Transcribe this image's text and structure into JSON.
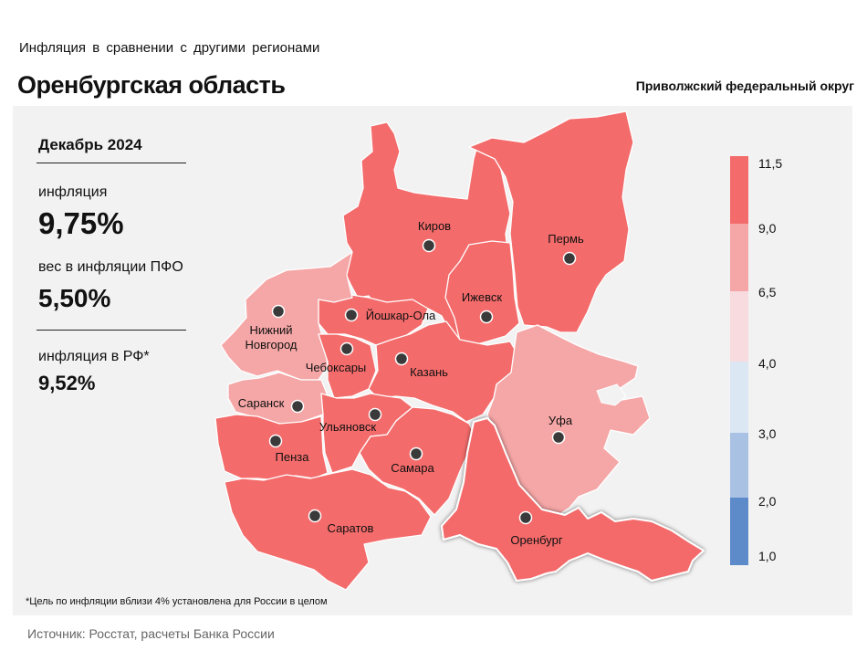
{
  "header": {
    "subtitle": "Инфляция в сравнении с другими регионами",
    "title": "Оренбургская область",
    "district": "Приволжский федеральный округ"
  },
  "info": {
    "month": "Декабрь 2024",
    "inflation_label": "инфляция",
    "inflation_value": "9,75%",
    "weight_label": "вес в инфляции ПФО",
    "weight_value": "5,50%",
    "rf_label": "инфляция в РФ*",
    "rf_value": "9,52%"
  },
  "legend": {
    "ticks": [
      "11,5",
      "9,0",
      "6,5",
      "4,0",
      "3,0",
      "2,0",
      "1,0"
    ],
    "colors": [
      "#f46b6b",
      "#f5a6a6",
      "#f7dbde",
      "#dce7f4",
      "#a9c2e3",
      "#5d8bca"
    ]
  },
  "cities": [
    {
      "name": "Киров",
      "category": "high"
    },
    {
      "name": "Пермь",
      "category": "high"
    },
    {
      "name": "Ижевск",
      "category": "high"
    },
    {
      "name": "Йошкар-Ола",
      "category": "high"
    },
    {
      "name": "Нижний Новгород",
      "category": "mid"
    },
    {
      "name": "Чебоксары",
      "category": "high"
    },
    {
      "name": "Казань",
      "category": "high"
    },
    {
      "name": "Саранск",
      "category": "mid"
    },
    {
      "name": "Ульяновск",
      "category": "high"
    },
    {
      "name": "Уфа",
      "category": "mid"
    },
    {
      "name": "Пенза",
      "category": "high"
    },
    {
      "name": "Самара",
      "category": "high"
    },
    {
      "name": "Саратов",
      "category": "high"
    },
    {
      "name": "Оренбург",
      "category": "high"
    }
  ],
  "footnote": "*Цель по инфляции вблизи 4% установлена для России в целом",
  "source": "Источник: Росстат, расчеты Банка России"
}
